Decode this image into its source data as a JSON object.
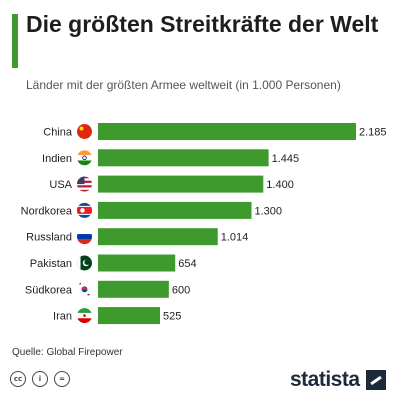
{
  "header": {
    "title": "Die größten Streitkräfte der Welt",
    "subtitle": "Länder mit der größten Armee weltweit (in 1.000 Personen)"
  },
  "chart_data": {
    "type": "bar",
    "orientation": "horizontal",
    "categories": [
      "China",
      "Indien",
      "USA",
      "Nordkorea",
      "Russland",
      "Pakistan",
      "Südkorea",
      "Iran"
    ],
    "values": [
      2185,
      1445,
      1400,
      1300,
      1014,
      654,
      600,
      525
    ],
    "value_labels": [
      "2.185",
      "1.445",
      "1.400",
      "1.300",
      "1.014",
      "654",
      "600",
      "525"
    ],
    "flag_icons": [
      "china-flag-icon",
      "india-flag-icon",
      "usa-flag-icon",
      "north-korea-flag-icon",
      "russia-flag-icon",
      "pakistan-flag-icon",
      "south-korea-flag-icon",
      "iran-flag-icon"
    ],
    "bar_color": "#3f9a2d",
    "xlim": [
      0,
      2185
    ],
    "grid": false,
    "legend": "none"
  },
  "footer": {
    "source": "Quelle: Global Firepower",
    "license_icons": [
      {
        "name": "cc-icon",
        "glyph": "cc"
      },
      {
        "name": "attribution-icon",
        "glyph": "i"
      },
      {
        "name": "no-derivatives-icon",
        "glyph": "="
      }
    ],
    "brand": "statista",
    "brand_color": "#1c2a3a"
  }
}
